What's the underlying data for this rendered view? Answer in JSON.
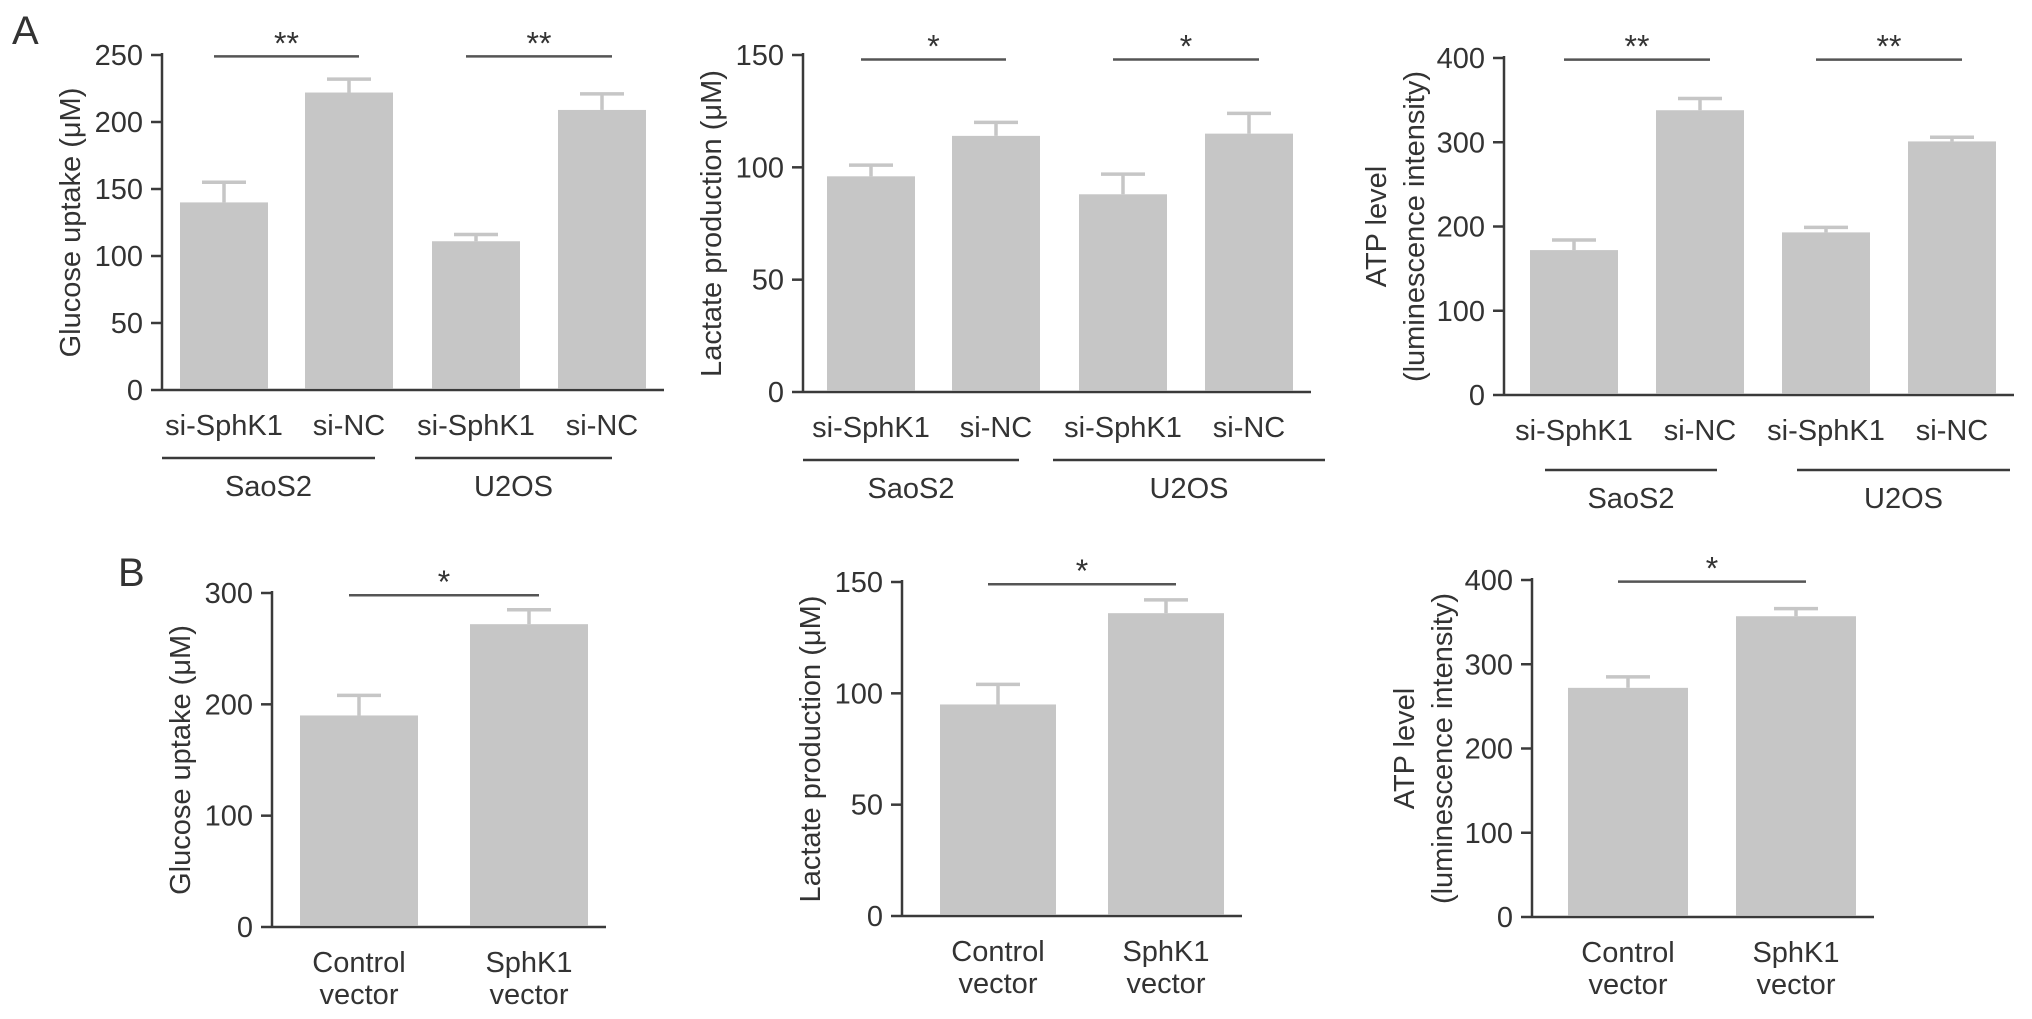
{
  "panels": [
    {
      "label": "A"
    },
    {
      "label": "B"
    }
  ],
  "colors": {
    "bar": "#c6c6c6",
    "axis": "#3a3a3a",
    "text": "#333333",
    "significance_line": "#555555"
  },
  "chart_data": [
    {
      "type": "bar",
      "panel": "A",
      "ylabel": [
        "Glucose uptake (μM)"
      ],
      "ylim": [
        0,
        250
      ],
      "yticks": [
        0,
        50,
        100,
        150,
        200,
        250
      ],
      "categories": [
        "si-SphK1",
        "si-NC",
        "si-SphK1",
        "si-NC"
      ],
      "values": [
        140,
        222,
        111,
        209
      ],
      "errors": [
        15,
        10,
        5,
        12
      ],
      "groups": [
        {
          "name": "SaoS2",
          "members": [
            0,
            1
          ]
        },
        {
          "name": "U2OS",
          "members": [
            2,
            3
          ]
        }
      ],
      "significance": [
        {
          "from": 0,
          "to": 1,
          "label": "**",
          "y": 249
        },
        {
          "from": 2,
          "to": 3,
          "label": "**",
          "y": 249
        }
      ]
    },
    {
      "type": "bar",
      "panel": "A",
      "ylabel": [
        "Lactate production (μM)"
      ],
      "ylim": [
        0,
        150
      ],
      "yticks": [
        0,
        50,
        100,
        150
      ],
      "categories": [
        "si-SphK1",
        "si-NC",
        "si-SphK1",
        "si-NC"
      ],
      "values": [
        96,
        114,
        88,
        115
      ],
      "errors": [
        5,
        6,
        9,
        9
      ],
      "groups": [
        {
          "name": "SaoS2",
          "members": [
            0,
            1
          ]
        },
        {
          "name": "U2OS",
          "members": [
            2,
            3
          ]
        }
      ],
      "significance": [
        {
          "from": 0,
          "to": 1,
          "label": "*",
          "y": 148
        },
        {
          "from": 2,
          "to": 3,
          "label": "*",
          "y": 148
        }
      ]
    },
    {
      "type": "bar",
      "panel": "A",
      "ylabel": [
        "ATP level",
        "(luminescence intensity)"
      ],
      "ylim": [
        0,
        400
      ],
      "yticks": [
        0,
        100,
        200,
        300,
        400
      ],
      "categories": [
        "si-SphK1",
        "si-NC",
        "si-SphK1",
        "si-NC"
      ],
      "values": [
        172,
        338,
        193,
        301
      ],
      "errors": [
        12,
        14,
        6,
        5
      ],
      "groups": [
        {
          "name": "SaoS2",
          "members": [
            0,
            1
          ]
        },
        {
          "name": "U2OS",
          "members": [
            2,
            3
          ]
        }
      ],
      "significance": [
        {
          "from": 0,
          "to": 1,
          "label": "**",
          "y": 398
        },
        {
          "from": 2,
          "to": 3,
          "label": "**",
          "y": 398
        }
      ]
    },
    {
      "type": "bar",
      "panel": "B",
      "ylabel": [
        "Glucose uptake (μM)"
      ],
      "ylim": [
        0,
        300
      ],
      "yticks": [
        0,
        100,
        200,
        300
      ],
      "categories": [
        [
          "Control",
          "vector"
        ],
        [
          "SphK1",
          "vector"
        ]
      ],
      "values": [
        190,
        272
      ],
      "errors": [
        18,
        13
      ],
      "groups": [],
      "significance": [
        {
          "from": 0,
          "to": 1,
          "label": "*",
          "y": 298
        }
      ]
    },
    {
      "type": "bar",
      "panel": "B",
      "ylabel": [
        "Lactate production (μM)"
      ],
      "ylim": [
        0,
        150
      ],
      "yticks": [
        0,
        50,
        100,
        150
      ],
      "categories": [
        [
          "Control",
          "vector"
        ],
        [
          "SphK1",
          "vector"
        ]
      ],
      "values": [
        95,
        136
      ],
      "errors": [
        9,
        6
      ],
      "groups": [],
      "significance": [
        {
          "from": 0,
          "to": 1,
          "label": "*",
          "y": 149
        }
      ]
    },
    {
      "type": "bar",
      "panel": "B",
      "ylabel": [
        "ATP level",
        "(luminescence intensity)"
      ],
      "ylim": [
        0,
        400
      ],
      "yticks": [
        0,
        100,
        200,
        300,
        400
      ],
      "categories": [
        [
          "Control",
          "vector"
        ],
        [
          "SphK1",
          "vector"
        ]
      ],
      "values": [
        272,
        357
      ],
      "errors": [
        13,
        9
      ],
      "groups": [],
      "significance": [
        {
          "from": 0,
          "to": 1,
          "label": "*",
          "y": 398
        }
      ]
    }
  ]
}
